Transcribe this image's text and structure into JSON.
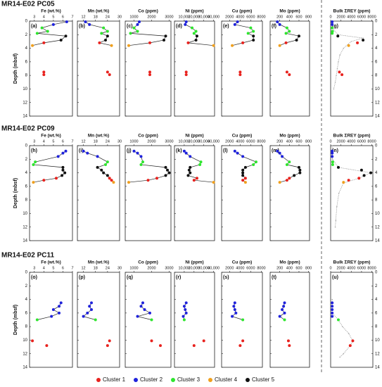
{
  "chart_data": {
    "type": "scatter",
    "ylabel": "Depth (mbsf)",
    "ylim": [
      0,
      14
    ],
    "yticks": [
      0,
      2,
      4,
      6,
      8,
      10,
      12,
      14
    ],
    "legend": [
      {
        "name": "Cluster 1",
        "color": "#e8221e"
      },
      {
        "name": "Cluster 2",
        "color": "#1f22dc"
      },
      {
        "name": "Cluster 3",
        "color": "#2ee62e"
      },
      {
        "name": "Cluster 4",
        "color": "#f0a01e"
      },
      {
        "name": "Cluster 5",
        "color": "#111111"
      }
    ],
    "panels": [
      {
        "xlabel": "Fe (wt.%)",
        "xlim": [
          2.5,
          7
        ],
        "xticks": [
          3,
          4,
          5,
          6,
          7
        ]
      },
      {
        "xlabel": "Mn (wt.%)",
        "xlim": [
          9,
          30
        ],
        "xticks": [
          12,
          18,
          24,
          30
        ]
      },
      {
        "xlabel": "Co (ppm)",
        "xlim": [
          500,
          3100
        ],
        "xticks": [
          1000,
          2000,
          3000
        ]
      },
      {
        "xlabel": "Ni (ppm)",
        "xlim": [
          0,
          41000
        ],
        "xticks": [
          {
            "value": 10000,
            "label": "10,000"
          },
          {
            "value": 20000,
            "label": "20,000"
          },
          {
            "value": 30000,
            "label": "30,000"
          },
          {
            "value": 40000,
            "label": "40,000"
          }
        ]
      },
      {
        "xlabel": "Cu (ppm)",
        "xlim": [
          500,
          8200
        ],
        "xticks": [
          2000,
          4000,
          6000,
          8000
        ]
      },
      {
        "xlabel": "Mo (ppm)",
        "xlim": [
          0,
          820
        ],
        "xticks": [
          200,
          400,
          600,
          800
        ]
      },
      {
        "xlabel": "Bulk ΣREY (ppm)",
        "xlim": [
          0,
          8200
        ],
        "xticks": [
          0,
          2000,
          4000,
          6000,
          8000
        ]
      }
    ],
    "cores": [
      {
        "title": "MR14-E02 PC05",
        "labels": [
          "(a)",
          "(b)",
          "(c)",
          "(d)",
          "(e)",
          "(f)",
          "(g)"
        ],
        "depth": [
          0.1,
          0.5,
          1.0,
          1.5,
          1.8,
          2.2,
          2.8,
          3.2,
          3.6,
          7.5,
          7.9
        ],
        "cluster": [
          2,
          2,
          3,
          3,
          3,
          5,
          5,
          1,
          4,
          1,
          1
        ],
        "values": [
          [
            6.4,
            5.0,
            3.8,
            4.4,
            3.3,
            6.3,
            5.8,
            4.0,
            2.8,
            4.0,
            4.0
          ],
          [
            13,
            15,
            22,
            24,
            21,
            24,
            23,
            20,
            26,
            24,
            25
          ],
          [
            1300,
            1200,
            1000,
            1200,
            800,
            2800,
            2700,
            1900,
            700,
            1900,
            1900
          ],
          [
            12000,
            11000,
            18000,
            22000,
            20000,
            23000,
            22000,
            14000,
            40000,
            12000,
            12000
          ],
          [
            3500,
            3000,
            6000,
            6500,
            5500,
            6500,
            6500,
            4500,
            2500,
            4000,
            4000
          ],
          [
            150,
            200,
            350,
            400,
            330,
            600,
            550,
            330,
            200,
            350,
            400
          ],
          [
            300,
            300,
            300,
            350,
            300,
            1400,
            6300,
            5200,
            3500,
            1700,
            2200
          ]
        ],
        "profile": {
          "depth": [
            0,
            1,
            2,
            2.5,
            3,
            4,
            5,
            6,
            7,
            8,
            9,
            10
          ],
          "values": [
            300,
            300,
            1400,
            6300,
            4000,
            2500,
            1800,
            1500,
            1300,
            1100,
            900,
            600
          ]
        }
      },
      {
        "title": "MR14-E02 PC09",
        "labels": [
          "(h)",
          "(i)",
          "(j)",
          "(k)",
          "(l)",
          "(m)",
          "(n)"
        ],
        "depth": [
          0.8,
          1.1,
          1.6,
          2.4,
          2.8,
          3.2,
          3.6,
          4.0,
          4.4,
          4.8,
          5.1,
          5.4
        ],
        "cluster": [
          2,
          2,
          2,
          3,
          3,
          5,
          5,
          5,
          5,
          1,
          1,
          4
        ],
        "values": [
          [
            6.3,
            6.0,
            5.5,
            3.1,
            2.9,
            6.0,
            6.0,
            6.2,
            5.9,
            5.3,
            4.0,
            2.9
          ],
          [
            12,
            14,
            19,
            24,
            23,
            19,
            21,
            22,
            24,
            25,
            26,
            27
          ],
          [
            1000,
            1200,
            1400,
            1500,
            1400,
            2800,
            2900,
            3000,
            2800,
            2300,
            1800,
            700
          ],
          [
            10000,
            12000,
            16000,
            27000,
            26000,
            16000,
            15000,
            16000,
            14000,
            23000,
            20000,
            40000
          ],
          [
            3000,
            3500,
            4500,
            7000,
            6500,
            5000,
            4500,
            4500,
            4500,
            5000,
            4500,
            5000
          ],
          [
            150,
            200,
            250,
            400,
            350,
            600,
            620,
            620,
            500,
            400,
            350,
            200
          ],
          [
            300,
            300,
            300,
            400,
            400,
            1500,
            6000,
            7800,
            6500,
            5500,
            3500,
            2500
          ]
        ],
        "profile": {
          "depth": [
            0,
            1,
            2,
            3.2,
            4.0,
            4.8,
            5.5,
            7,
            9,
            11,
            12
          ],
          "values": [
            300,
            300,
            350,
            1500,
            7800,
            5500,
            2500,
            1600,
            1200,
            1000,
            900
          ]
        }
      },
      {
        "title": "MR14-E02 PC11",
        "labels": [
          "(o)",
          "(p)",
          "(q)",
          "(r)",
          "(s)",
          "(t)",
          "(u)"
        ],
        "depth": [
          4.5,
          5.0,
          5.5,
          6.0,
          6.5,
          7.0,
          10.1,
          10.8
        ],
        "cluster": [
          2,
          2,
          2,
          2,
          2,
          3,
          1,
          1
        ],
        "values": [
          [
            5.8,
            5.6,
            5.0,
            5.6,
            4.8,
            3.3,
            2.8,
            4.3
          ],
          [
            16,
            15,
            16,
            14,
            12,
            18,
            25,
            24
          ],
          [
            1500,
            1400,
            1600,
            1900,
            1200,
            2000,
            2000,
            2500
          ],
          [
            12000,
            10000,
            11000,
            12000,
            9000,
            10000,
            30000,
            20000
          ],
          [
            3000,
            2800,
            3000,
            3200,
            2500,
            4500,
            4500,
            4000
          ],
          [
            300,
            280,
            250,
            300,
            200,
            300,
            380,
            400
          ],
          [
            300,
            300,
            300,
            300,
            300,
            1500,
            4300,
            3800
          ]
        ],
        "profile": {
          "depth": [
            4,
            5,
            6,
            7,
            8,
            9,
            10.1,
            10.8,
            12,
            12.5
          ],
          "values": [
            300,
            300,
            300,
            1500,
            2300,
            3500,
            4300,
            3800,
            2500,
            1800
          ]
        }
      }
    ]
  }
}
